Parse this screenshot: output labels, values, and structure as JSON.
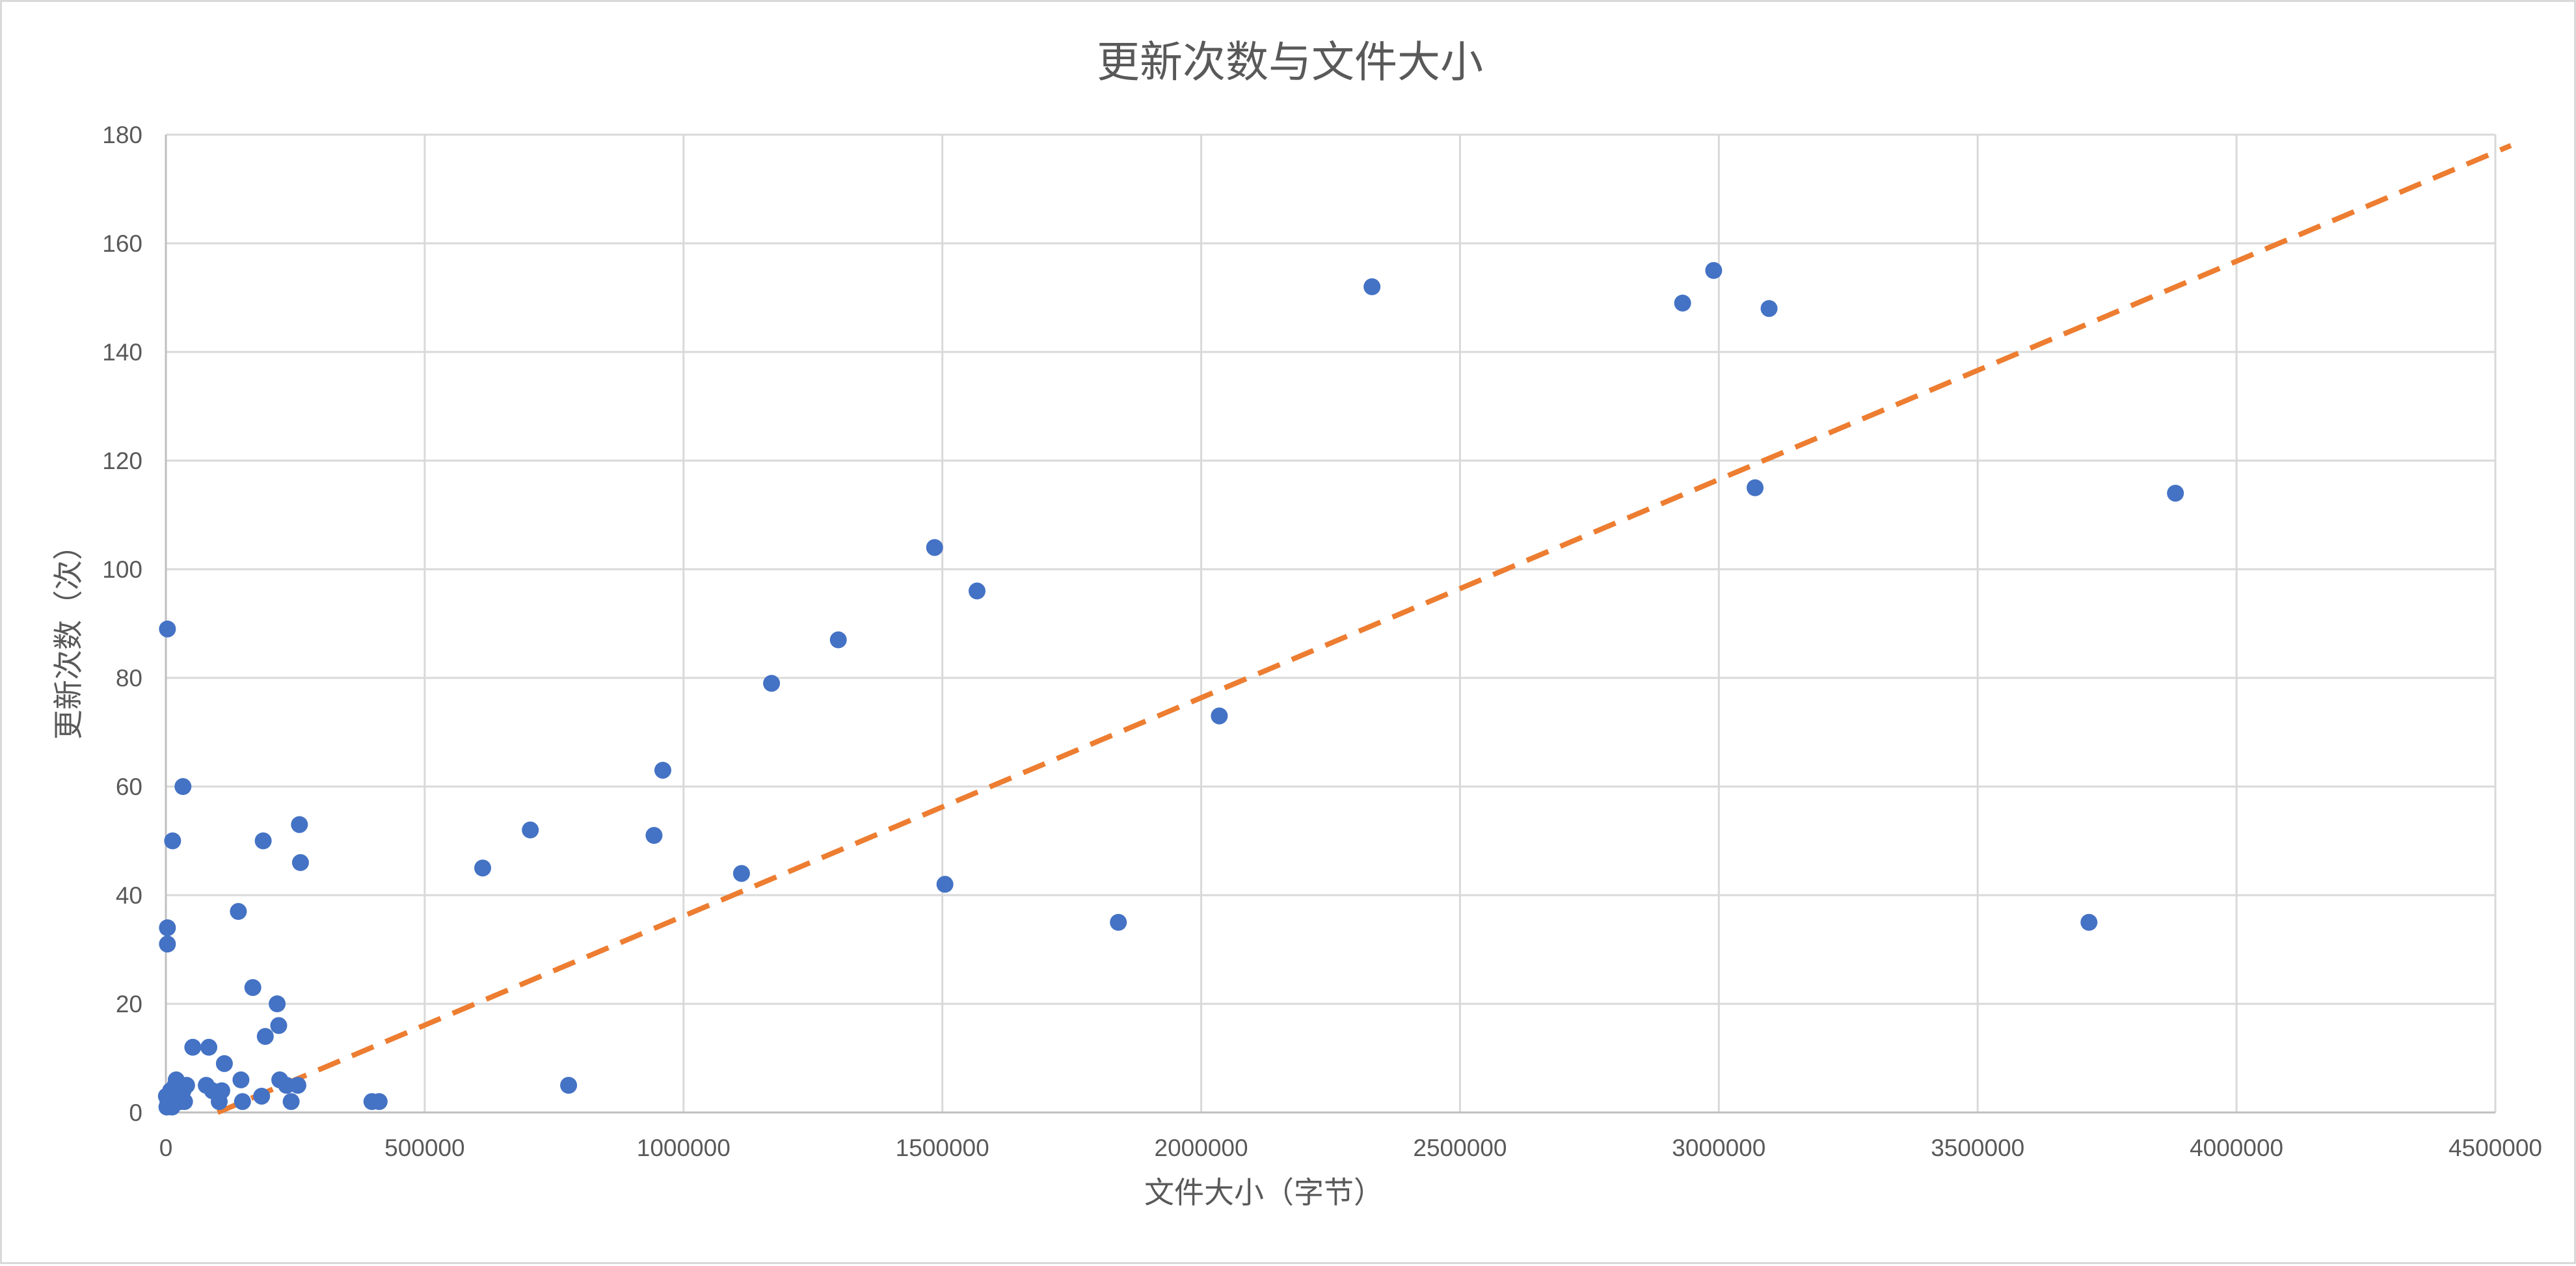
{
  "chart_data": {
    "type": "scatter",
    "title": "更新次数与文件大小",
    "xlabel": "文件大小（字节）",
    "ylabel": "更新次数（次）",
    "xlim": [
      0,
      4500000
    ],
    "ylim": [
      0,
      180
    ],
    "x_ticks": [
      "0",
      "500000",
      "1000000",
      "1500000",
      "2000000",
      "2500000",
      "3000000",
      "3500000",
      "4000000",
      "4500000"
    ],
    "y_ticks": [
      "0",
      "20",
      "40",
      "60",
      "80",
      "100",
      "120",
      "140",
      "160",
      "180"
    ],
    "grid": true,
    "legend": "none",
    "series": [
      {
        "color": "#4472c4",
        "marker": "circle",
        "points": [
          [
            2000,
            1
          ],
          [
            4000,
            2
          ],
          [
            1000,
            3
          ],
          [
            6000,
            2
          ],
          [
            9000,
            4
          ],
          [
            12000,
            1
          ],
          [
            15000,
            3
          ],
          [
            18000,
            5
          ],
          [
            20000,
            6
          ],
          [
            22000,
            4
          ],
          [
            25000,
            3
          ],
          [
            28000,
            2
          ],
          [
            30000,
            5
          ],
          [
            33000,
            4
          ],
          [
            36000,
            2
          ],
          [
            40000,
            5
          ],
          [
            3000,
            89
          ],
          [
            3000,
            34
          ],
          [
            3000,
            31
          ],
          [
            13000,
            50
          ],
          [
            33000,
            60
          ],
          [
            52000,
            12
          ],
          [
            83000,
            12
          ],
          [
            78000,
            5
          ],
          [
            90000,
            4
          ],
          [
            103000,
            2
          ],
          [
            108000,
            4
          ],
          [
            113000,
            9
          ],
          [
            140000,
            37
          ],
          [
            145000,
            6
          ],
          [
            148000,
            2
          ],
          [
            168000,
            23
          ],
          [
            185000,
            3
          ],
          [
            188000,
            50
          ],
          [
            192000,
            14
          ],
          [
            215000,
            20
          ],
          [
            218000,
            16
          ],
          [
            220000,
            6
          ],
          [
            233000,
            5
          ],
          [
            242000,
            2
          ],
          [
            255000,
            5
          ],
          [
            258000,
            53
          ],
          [
            260000,
            46
          ],
          [
            398000,
            2
          ],
          [
            412000,
            2
          ],
          [
            612000,
            45
          ],
          [
            704000,
            52
          ],
          [
            778000,
            5
          ],
          [
            943000,
            51
          ],
          [
            960000,
            63
          ],
          [
            1112000,
            44
          ],
          [
            1170000,
            79
          ],
          [
            1299000,
            87
          ],
          [
            1485000,
            104
          ],
          [
            1505000,
            42
          ],
          [
            1567000,
            96
          ],
          [
            1840000,
            35
          ],
          [
            2035000,
            73
          ],
          [
            2330000,
            152
          ],
          [
            2930000,
            149
          ],
          [
            2990000,
            155
          ],
          [
            3070000,
            115
          ],
          [
            3097000,
            148
          ],
          [
            3715000,
            35
          ],
          [
            3882000,
            114
          ]
        ]
      }
    ],
    "trendline": {
      "type": "linear",
      "color": "#ed7d31",
      "style": "dashed",
      "x": [
        100000,
        4530000
      ],
      "y": [
        0,
        178
      ]
    }
  }
}
